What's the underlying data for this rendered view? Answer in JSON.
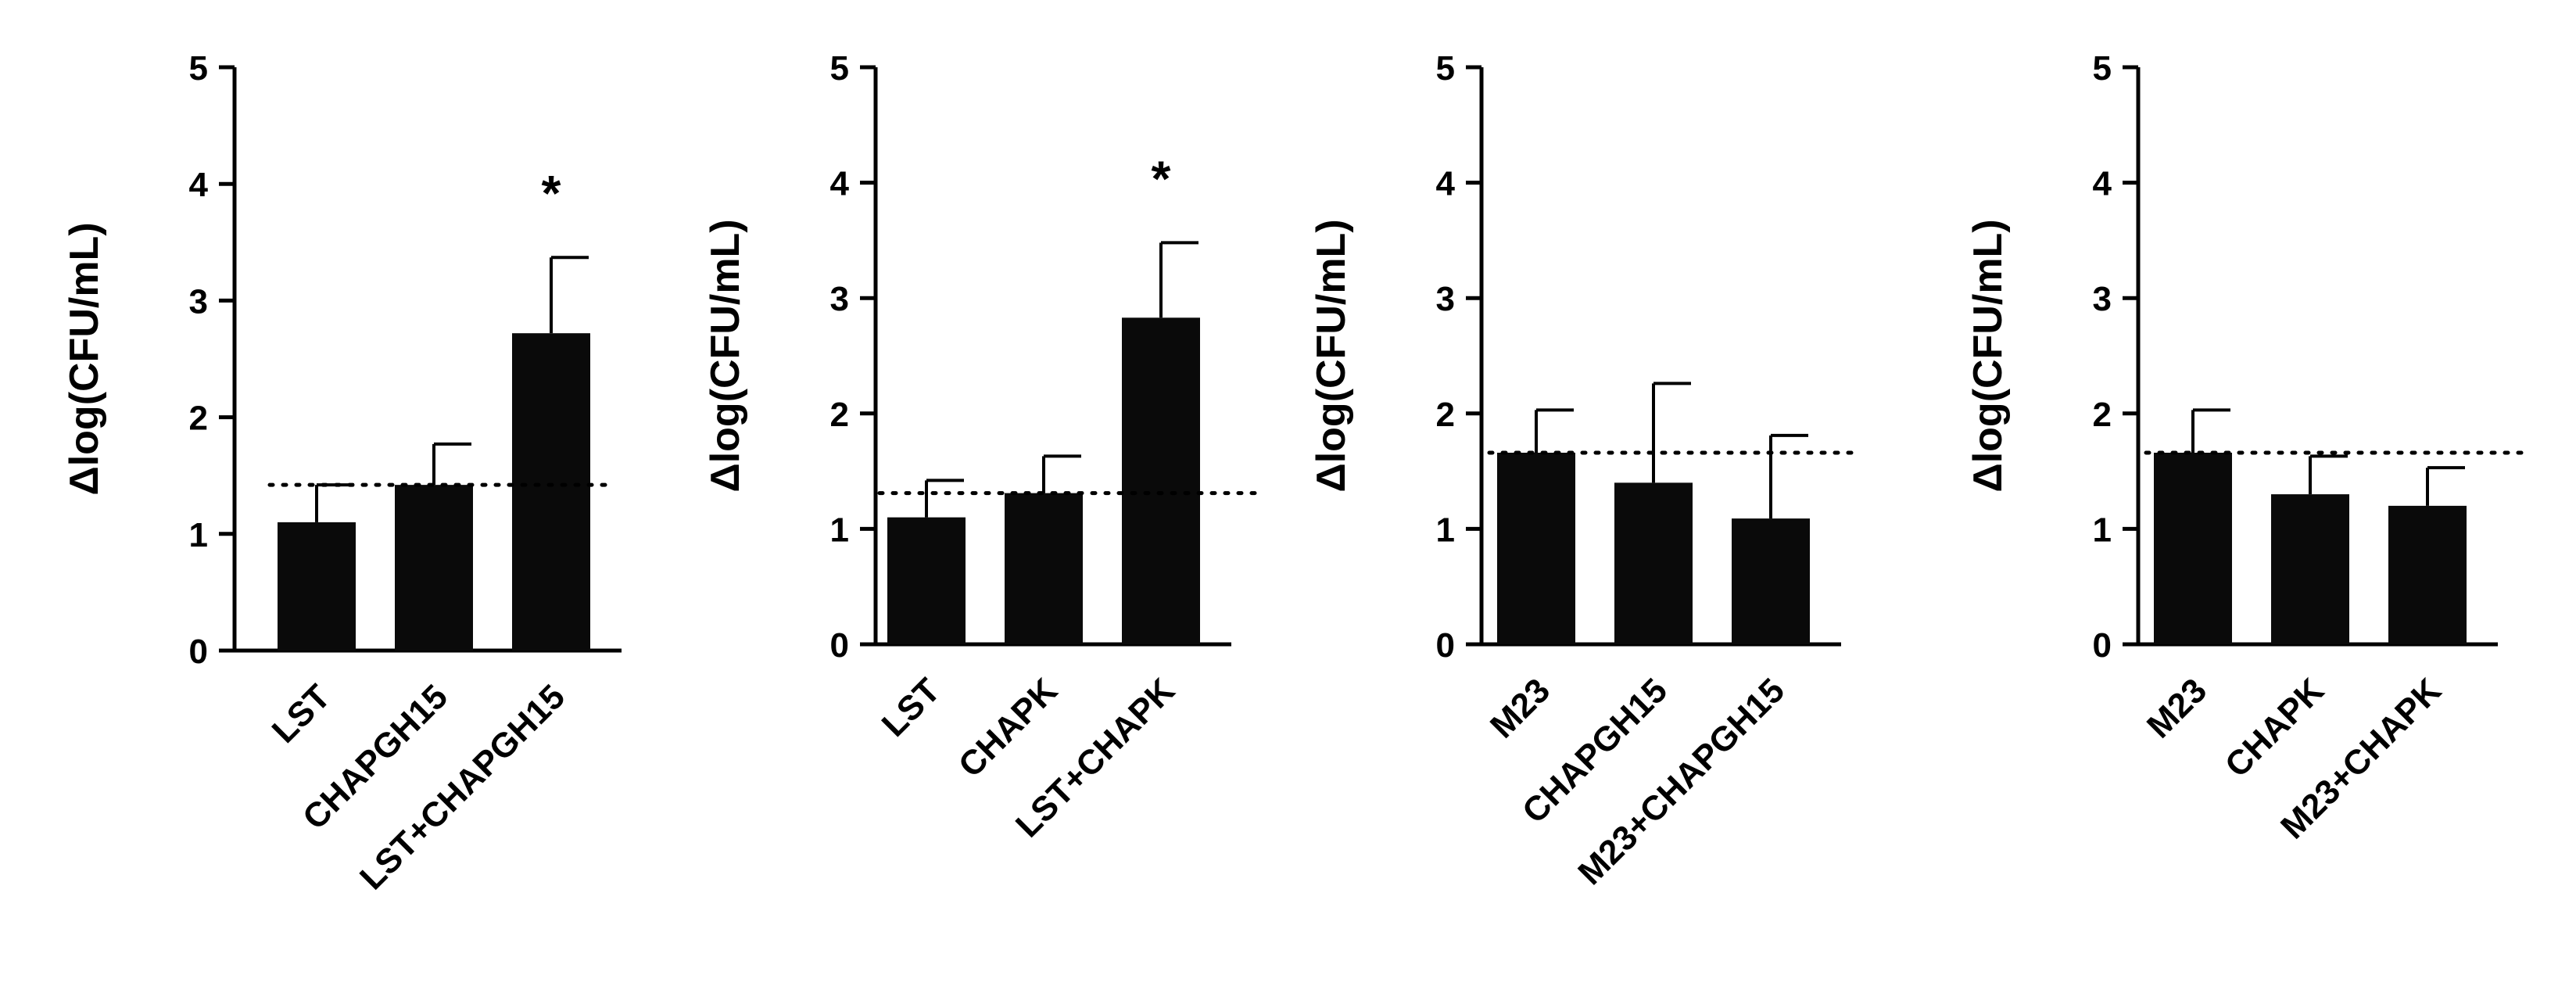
{
  "chart_data": [
    {
      "type": "bar",
      "categories": [
        "LST",
        "CHAPGH15",
        "LST+CHAPGH15"
      ],
      "values": [
        1.1,
        1.42,
        2.72
      ],
      "errors": [
        0.32,
        0.35,
        0.65
      ],
      "reference_line": 1.42,
      "annotations": [
        "",
        "",
        "*"
      ],
      "ylabel": "Δlog(CFU/mL)",
      "ylim": [
        0,
        5
      ],
      "yticks": [
        "0",
        "1",
        "2",
        "3",
        "4",
        "5"
      ],
      "grid": false
    },
    {
      "type": "bar",
      "categories": [
        "LST",
        "CHAPK",
        "LST+CHAPK"
      ],
      "values": [
        1.1,
        1.31,
        2.83
      ],
      "errors": [
        0.32,
        0.32,
        0.65
      ],
      "reference_line": 1.31,
      "annotations": [
        "",
        "",
        "*"
      ],
      "ylabel": "Δlog(CFU/mL)",
      "ylim": [
        0,
        5
      ],
      "yticks": [
        "0",
        "1",
        "2",
        "3",
        "4",
        "5"
      ],
      "grid": false
    },
    {
      "type": "bar",
      "categories": [
        "M23",
        "CHAPGH15",
        "M23+CHAPGH15"
      ],
      "values": [
        1.66,
        1.4,
        1.09
      ],
      "errors": [
        0.37,
        0.86,
        0.72
      ],
      "reference_line": 1.66,
      "annotations": [
        "",
        "",
        ""
      ],
      "ylabel": "Δlog(CFU/mL)",
      "ylim": [
        0,
        5
      ],
      "yticks": [
        "0",
        "1",
        "2",
        "3",
        "4",
        "5"
      ],
      "grid": false
    },
    {
      "type": "bar",
      "categories": [
        "M23",
        "CHAPK",
        "M23+CHAPK"
      ],
      "values": [
        1.66,
        1.3,
        1.2
      ],
      "errors": [
        0.37,
        0.33,
        0.33
      ],
      "reference_line": 1.66,
      "annotations": [
        "",
        "",
        ""
      ],
      "ylabel": "Δlog(CFU/mL)",
      "ylim": [
        0,
        5
      ],
      "yticks": [
        "0",
        "1",
        "2",
        "3",
        "4",
        "5"
      ],
      "grid": false
    }
  ]
}
